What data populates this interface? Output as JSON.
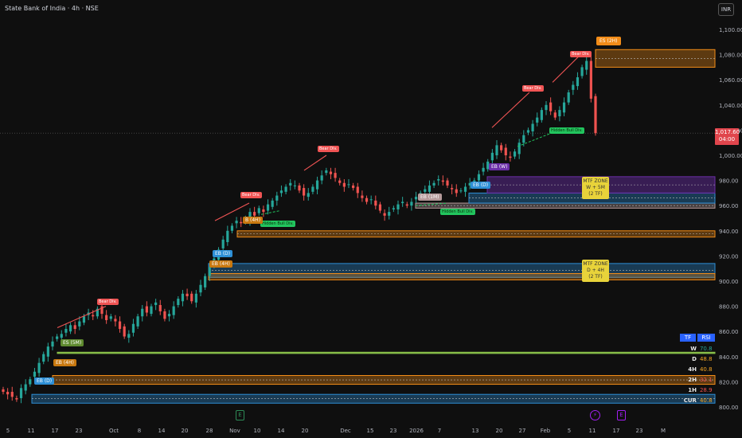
{
  "header": {
    "title": "State Bank of India · 4h · NSE",
    "currency_button": "INR"
  },
  "price_tag": {
    "price": "1,017.60",
    "time": "04:00"
  },
  "colors": {
    "up": "#26a69a",
    "down": "#ef5350",
    "bear_div": "#f05454",
    "hidden_bull": "#22c55e",
    "orange_zone": "#f28c18",
    "blue_zone": "#2d8fd6",
    "purple_zone": "#6b2ea8",
    "green_line": "#8bc34a",
    "mtf_yellow": "#e8d33a",
    "rsi_header": "#2962ff"
  },
  "labels": {
    "bear_div": "Bear Div.",
    "hidden_bull_div": "Hidden Bull Div.",
    "eb_d": "EB (D)",
    "eb_4h": "EB (4H)",
    "eb_w": "EB (W)",
    "eb_1m": "EB (1M)",
    "es_5m": "ES (5M)",
    "es_2h": "ES (2H)",
    "b_4h": "B (4H)"
  },
  "mtf_zones": [
    {
      "title": "MTF ZONE",
      "line2": "W + 5M",
      "line3": "(2 TF)"
    },
    {
      "title": "MTF ZONE",
      "line2": "D + 4H",
      "line3": "(2 TF)"
    }
  ],
  "rsi_table": {
    "headers": [
      "TF",
      "RSI"
    ],
    "rows": [
      {
        "tf": "W",
        "value": "70.8",
        "color": "#26a69a"
      },
      {
        "tf": "D",
        "value": "48.8",
        "color": "#f5a623"
      },
      {
        "tf": "4H",
        "value": "40.8",
        "color": "#f5a623"
      },
      {
        "tf": "2H",
        "value": "32.1",
        "color": "#ef5350"
      },
      {
        "tf": "1H",
        "value": "28.9",
        "color": "#ef5350"
      },
      {
        "tf": "CUR",
        "value": "40.8",
        "color": "#f5a623"
      }
    ]
  },
  "event_markers": [
    "E",
    "⚡",
    "E"
  ],
  "chart_data": {
    "type": "candlestick",
    "title": "State Bank of India · 4h · NSE",
    "y_ticks": [
      800,
      820,
      840,
      860,
      880,
      900,
      920,
      940,
      960,
      980,
      1000,
      1020,
      1040,
      1060,
      1080,
      1100
    ],
    "y_tick_labels": [
      "800.00",
      "820.00",
      "840.00",
      "860.00",
      "880.00",
      "900.00",
      "920.00",
      "940.00",
      "960.00",
      "980.00",
      "1,000.00",
      "1,020.00",
      "1,040.00",
      "1,060.00",
      "1,080.00",
      "1,100.00"
    ],
    "ylim": [
      795,
      1105
    ],
    "x_ticks": [
      "5",
      "11",
      "17",
      "23",
      "Oct",
      "8",
      "14",
      "20",
      "28",
      "Nov",
      "10",
      "14",
      "20",
      "Dec",
      "15",
      "23",
      "2026",
      "7",
      "13",
      "20",
      "27",
      "Feb",
      "5",
      "11",
      "17",
      "23",
      "M"
    ],
    "last_price": 1017.6,
    "closes": [
      812,
      810,
      808,
      806,
      815,
      818,
      822,
      828,
      835,
      842,
      848,
      852,
      856,
      858,
      862,
      865,
      862,
      868,
      872,
      875,
      872,
      878,
      874,
      869,
      872,
      868,
      862,
      856,
      858,
      866,
      872,
      878,
      875,
      880,
      883,
      876,
      870,
      874,
      880,
      886,
      890,
      888,
      884,
      890,
      897,
      904,
      911,
      918,
      925,
      933,
      940,
      944,
      948,
      946,
      950,
      955,
      952,
      958,
      955,
      961,
      964,
      968,
      972,
      975,
      978,
      976,
      972,
      968,
      970,
      975,
      980,
      984,
      988,
      985,
      982,
      978,
      975,
      977,
      974,
      970,
      966,
      963,
      965,
      960,
      956,
      952,
      955,
      958,
      961,
      963,
      960,
      963,
      967,
      970,
      973,
      976,
      978,
      981,
      979,
      976,
      973,
      970,
      972,
      975,
      978,
      980,
      985,
      990,
      995,
      1002,
      1008,
      1004,
      1000,
      998,
      1003,
      1010,
      1016,
      1020,
      1025,
      1030,
      1036,
      1040,
      1035,
      1030,
      1036,
      1042,
      1050,
      1056,
      1062,
      1070,
      1075,
      1045,
      1017.6
    ],
    "annotations": [
      "Bear Div.",
      "Bear Div.",
      "Bear Div.",
      "Bear Div.",
      "Bear Div.",
      "Hidden Bull Div.",
      "Hidden Bull Div.",
      "Hidden Bull Div.",
      "EB (D)",
      "EB (4H)",
      "ES (5M)",
      "EB (D)",
      "EB (4H)",
      "B (4H)",
      "EB (1M)",
      "EB (D)",
      "EB (W)",
      "ES (2H)",
      "MTF ZONE W + 5M (2 TF)",
      "MTF ZONE D + 4H (2 TF)"
    ]
  }
}
